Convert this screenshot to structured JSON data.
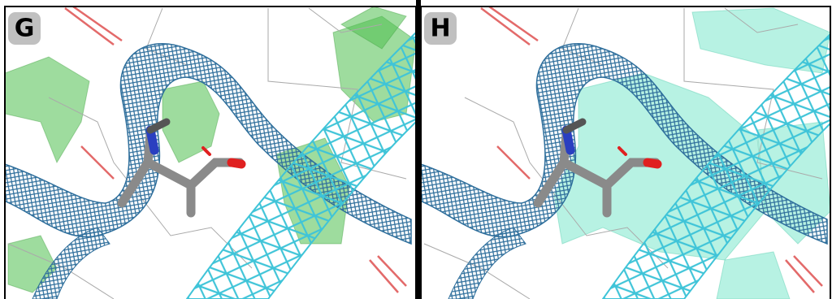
{
  "panels": [
    {
      "label": "G"
    },
    {
      "label": "H"
    }
  ]
}
